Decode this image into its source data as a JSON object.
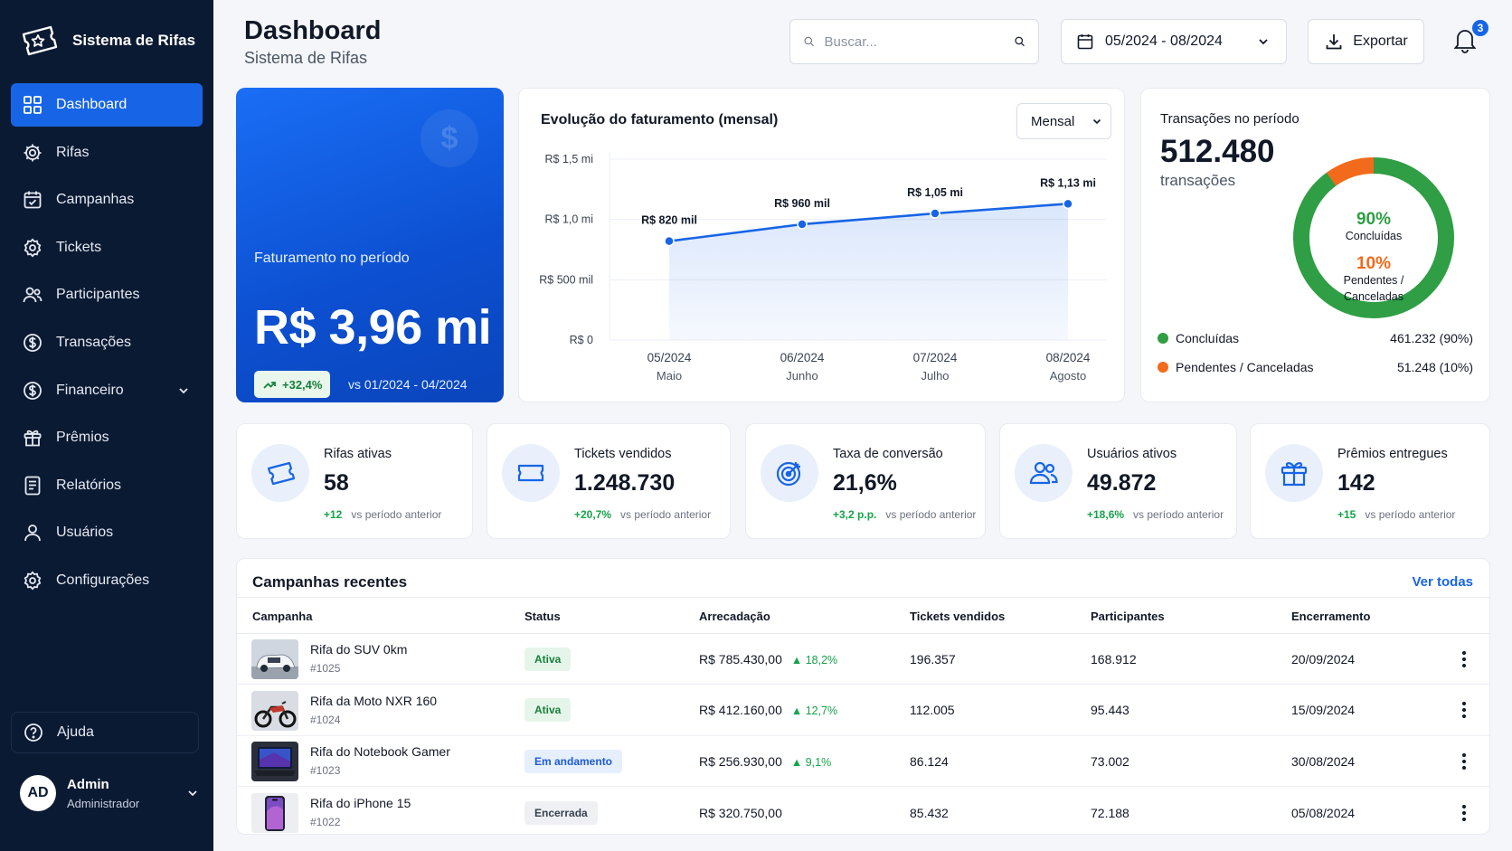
{
  "brand": {
    "name": "Sistema de Rifas",
    "logo_icon": "ticket-star-icon"
  },
  "sidebar": {
    "items": [
      {
        "label": "Dashboard",
        "icon": "grid-icon",
        "active": true
      },
      {
        "label": "Rifas",
        "icon": "ticket-gear-icon"
      },
      {
        "label": "Campanhas",
        "icon": "calendar-check-icon"
      },
      {
        "label": "Tickets",
        "icon": "gear-icon"
      },
      {
        "label": "Participantes",
        "icon": "users-icon"
      },
      {
        "label": "Transações",
        "icon": "dollar-circle-icon"
      },
      {
        "label": "Financeiro",
        "icon": "dollar-circle-icon",
        "has_submenu": true
      },
      {
        "label": "Prêmios",
        "icon": "gift-icon"
      },
      {
        "label": "Relatórios",
        "icon": "document-icon"
      },
      {
        "label": "Usuários",
        "icon": "user-icon"
      },
      {
        "label": "Configurações",
        "icon": "gear-icon"
      }
    ],
    "help_label": "Ajuda",
    "user": {
      "initials": "AD",
      "name": "Admin",
      "role": "Administrador"
    }
  },
  "header": {
    "title": "Dashboard",
    "subtitle": "Sistema de Rifas",
    "search_placeholder": "Buscar...",
    "date_range": "05/2024 - 08/2024",
    "export_label": "Exportar",
    "notification_count": "3"
  },
  "revenue": {
    "label": "Faturamento no período",
    "value": "R$ 3,96 mi",
    "delta": "+32,4%",
    "compare": "vs 01/2024 - 04/2024",
    "coin_symbol": "$"
  },
  "chart_card": {
    "title": "Evolução do faturamento (mensal)",
    "period_option": "Mensal"
  },
  "chart_data": {
    "type": "area",
    "title": "Evolução do faturamento (mensal)",
    "categories": [
      "05/2024",
      "06/2024",
      "07/2024",
      "08/2024"
    ],
    "category_sublabels": [
      "Maio",
      "Junho",
      "Julho",
      "Agosto"
    ],
    "values": [
      820000,
      960000,
      1050000,
      1130000
    ],
    "data_labels": [
      "R$ 820 mil",
      "R$ 960 mil",
      "R$ 1,05 mi",
      "R$ 1,13 mi"
    ],
    "y_ticks": [
      0,
      500000,
      1000000,
      1500000
    ],
    "y_tick_labels": [
      "R$ 0",
      "R$ 500 mil",
      "R$ 1,0 mi",
      "R$ 1,5 mi"
    ],
    "ylim": [
      0,
      1500000
    ],
    "grid": true,
    "color": "#1765e6"
  },
  "transactions": {
    "title": "Transações no período",
    "value": "512.480",
    "unit": "transações",
    "donut": [
      {
        "label": "Concluídas",
        "center_label": "Concluídas",
        "percent": 90,
        "percent_label": "90%",
        "count": "461.232 (90%)",
        "color": "#2f9e44"
      },
      {
        "label": "Pendentes / Canceladas",
        "center_label": "Pendentes / Canceladas",
        "percent": 10,
        "percent_label": "10%",
        "count": "51.248 (10%)",
        "color": "#f26a1b"
      }
    ]
  },
  "kpis": [
    {
      "label": "Rifas ativas",
      "value": "58",
      "delta": "+12",
      "vs": "vs período anterior",
      "icon": "ticket-icon"
    },
    {
      "label": "Tickets vendidos",
      "value": "1.248.730",
      "delta": "+20,7%",
      "vs": "vs período anterior",
      "icon": "ticket-icon"
    },
    {
      "label": "Taxa de conversão",
      "value": "21,6%",
      "delta": "+3,2 p.p.",
      "vs": "vs período anterior",
      "icon": "target-icon"
    },
    {
      "label": "Usuários ativos",
      "value": "49.872",
      "delta": "+18,6%",
      "vs": "vs período anterior",
      "icon": "users-icon"
    },
    {
      "label": "Prêmios entregues",
      "value": "142",
      "delta": "+15",
      "vs": "vs período anterior",
      "icon": "gift-icon"
    }
  ],
  "campaigns": {
    "title": "Campanhas recentes",
    "see_all": "Ver todas",
    "columns": [
      "Campanha",
      "Status",
      "Arrecadação",
      "Tickets vendidos",
      "Participantes",
      "Encerramento"
    ],
    "rows": [
      {
        "name": "Rifa do SUV 0km",
        "id": "#1025",
        "status": "Ativa",
        "status_kind": "ativa",
        "amount": "R$ 785.430,00",
        "growth": "▲ 18,2%",
        "tickets": "196.357",
        "participants": "168.912",
        "end": "20/09/2024",
        "thumb": "car"
      },
      {
        "name": "Rifa da Moto NXR 160",
        "id": "#1024",
        "status": "Ativa",
        "status_kind": "ativa",
        "amount": "R$ 412.160,00",
        "growth": "▲ 12,7%",
        "tickets": "112.005",
        "participants": "95.443",
        "end": "15/09/2024",
        "thumb": "moto"
      },
      {
        "name": "Rifa do Notebook Gamer",
        "id": "#1023",
        "status": "Em andamento",
        "status_kind": "andamento",
        "amount": "R$ 256.930,00",
        "growth": "▲ 9,1%",
        "tickets": "86.124",
        "participants": "73.002",
        "end": "30/08/2024",
        "thumb": "laptop"
      },
      {
        "name": "Rifa do iPhone 15",
        "id": "#1022",
        "status": "Encerrada",
        "status_kind": "encerrada",
        "amount": "R$ 320.750,00",
        "growth": "",
        "tickets": "85.432",
        "participants": "72.188",
        "end": "05/08/2024",
        "thumb": "phone"
      }
    ]
  }
}
